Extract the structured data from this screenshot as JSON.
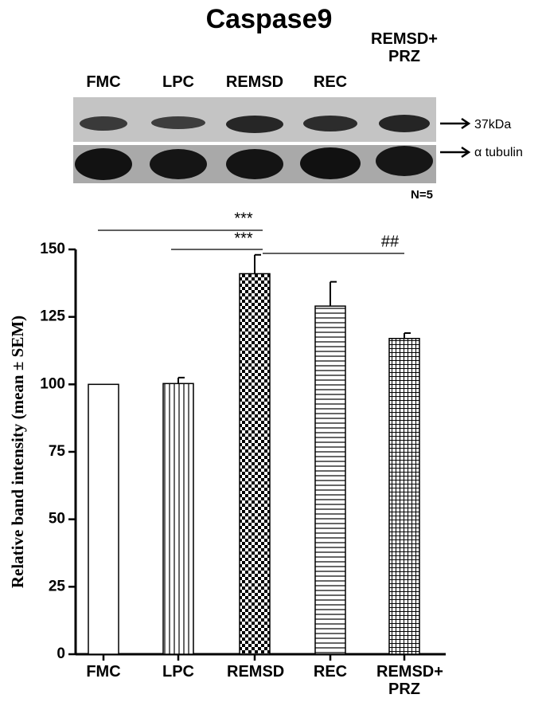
{
  "title": "Caspase9",
  "blot": {
    "lanes": [
      "FMC",
      "LPC",
      "REMSD",
      "REC",
      [
        "REMSD+",
        "PRZ"
      ]
    ],
    "bands": [
      "37kDa",
      "α tubulin"
    ],
    "n": "N=5"
  },
  "chart_data": {
    "type": "bar",
    "y_label": "Relative band intensity (mean ± SEM)",
    "categories": [
      "FMC",
      "LPC",
      "REMSD",
      "REC",
      "REMSD+ PRZ"
    ],
    "values": [
      100,
      100.3,
      141,
      129,
      117
    ],
    "errors": [
      null,
      2.2,
      7,
      9,
      2
    ],
    "patterns": [
      "none",
      "vertical",
      "checker",
      "horizontal",
      "grid"
    ],
    "color": "#000000",
    "ylim": [
      0,
      150
    ],
    "yticks": [
      0,
      25,
      50,
      75,
      100,
      125,
      150
    ],
    "annotations": [
      "***",
      "***",
      "##"
    ]
  }
}
